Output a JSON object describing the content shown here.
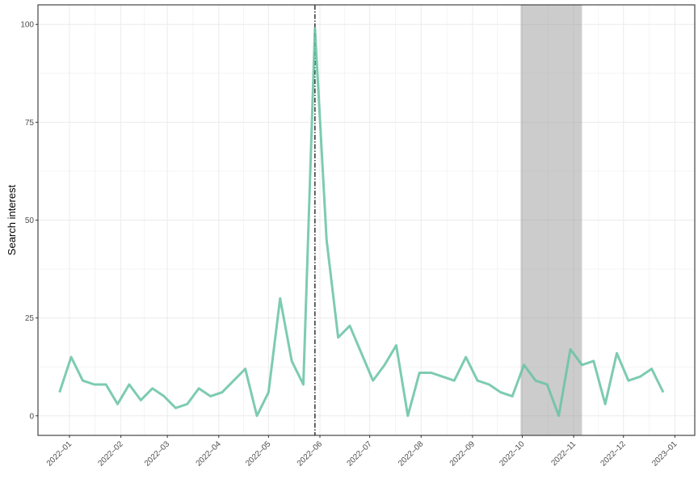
{
  "chart_data": {
    "type": "line",
    "title": "",
    "xlabel": "",
    "ylabel": "Search interest",
    "x_ticks": [
      "2022–01",
      "2022–02",
      "2022–03",
      "2022–04",
      "2022–05",
      "2022–06",
      "2022–07",
      "2022–08",
      "2022–09",
      "2022–10",
      "2022–11",
      "2022–12",
      "2023–01"
    ],
    "y_ticks": [
      "0",
      "25",
      "50",
      "75",
      "100"
    ],
    "ylim": [
      -5,
      105
    ],
    "xlim": [
      "2021-12-13",
      "2023-01-13"
    ],
    "grid": true,
    "line_color": "#66C2A5",
    "vline": {
      "date": "2022-05-29",
      "style": "dashdot",
      "color": "#000000"
    },
    "shaded_region": {
      "start": "2022-09-30",
      "end": "2022-11-06",
      "color": "#999999"
    },
    "series": [
      {
        "x": [
          "2021-12-26",
          "2022-01-02",
          "2022-01-09",
          "2022-01-16",
          "2022-01-23",
          "2022-01-30",
          "2022-02-06",
          "2022-02-13",
          "2022-02-20",
          "2022-02-27",
          "2022-03-06",
          "2022-03-13",
          "2022-03-20",
          "2022-03-27",
          "2022-04-03",
          "2022-04-10",
          "2022-04-17",
          "2022-04-24",
          "2022-05-01",
          "2022-05-08",
          "2022-05-15",
          "2022-05-22",
          "2022-05-29",
          "2022-06-05",
          "2022-06-12",
          "2022-06-19",
          "2022-06-26",
          "2022-07-03",
          "2022-07-10",
          "2022-07-17",
          "2022-07-24",
          "2022-07-31",
          "2022-08-07",
          "2022-08-14",
          "2022-08-21",
          "2022-08-28",
          "2022-09-04",
          "2022-09-11",
          "2022-09-18",
          "2022-09-25",
          "2022-10-02",
          "2022-10-09",
          "2022-10-16",
          "2022-10-23",
          "2022-10-30",
          "2022-11-06",
          "2022-11-13",
          "2022-11-20",
          "2022-11-27",
          "2022-12-04",
          "2022-12-11",
          "2022-12-18",
          "2022-12-25"
        ],
        "values": [
          6,
          15,
          9,
          8,
          8,
          3,
          8,
          4,
          7,
          5,
          2,
          3,
          7,
          5,
          6,
          9,
          12,
          0,
          6,
          30,
          14,
          8,
          99,
          45,
          20,
          23,
          16,
          9,
          13,
          18,
          0,
          11,
          11,
          10,
          9,
          15,
          9,
          8,
          6,
          5,
          13,
          9,
          8,
          0,
          17,
          13,
          14,
          3,
          16,
          9,
          10,
          12,
          6
        ]
      }
    ]
  }
}
